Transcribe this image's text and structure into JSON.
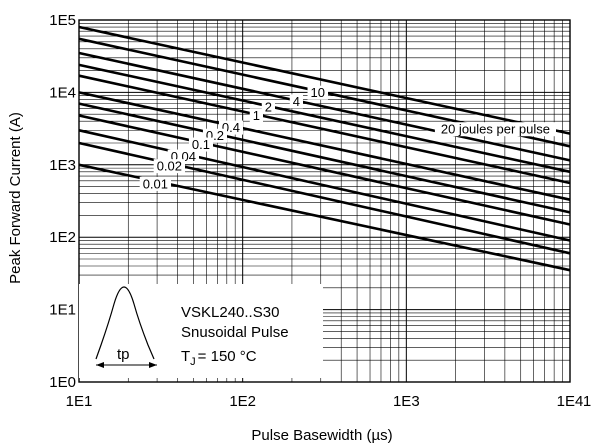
{
  "chart_data": {
    "type": "line",
    "xlabel": "Pulse Basewidth (µs)",
    "ylabel": "Peak Forward Current (A)",
    "x_scale": "log",
    "y_scale": "log",
    "xlim": [
      10,
      10000
    ],
    "ylim": [
      1,
      100000
    ],
    "x_ticks": [
      {
        "value": 10,
        "label": "1E1"
      },
      {
        "value": 100,
        "label": "1E2"
      },
      {
        "value": 1000,
        "label": "1E3"
      },
      {
        "value": 10000,
        "label": "1E4"
      }
    ],
    "x_tick_extra": "1",
    "y_ticks": [
      {
        "value": 1,
        "label": "1E0"
      },
      {
        "value": 10,
        "label": "1E1"
      },
      {
        "value": 100,
        "label": "1E2"
      },
      {
        "value": 1000,
        "label": "1E3"
      },
      {
        "value": 10000,
        "label": "1E4"
      },
      {
        "value": 100000,
        "label": "1E5"
      }
    ],
    "grid": true,
    "series": [
      {
        "label": "20 joules per pulse",
        "x": [
          10,
          10000
        ],
        "y": [
          80000,
          2700
        ]
      },
      {
        "label": "10",
        "x": [
          10,
          10000
        ],
        "y": [
          55000,
          1800
        ]
      },
      {
        "label": "4",
        "x": [
          10,
          10000
        ],
        "y": [
          35000,
          1150
        ]
      },
      {
        "label": "2",
        "x": [
          10,
          10000
        ],
        "y": [
          24000,
          800
        ]
      },
      {
        "label": "1",
        "x": [
          10,
          10000
        ],
        "y": [
          17000,
          560
        ]
      },
      {
        "label": "0.4",
        "x": [
          10,
          10000
        ],
        "y": [
          10000,
          330
        ]
      },
      {
        "label": "0.2",
        "x": [
          10,
          10000
        ],
        "y": [
          7000,
          220
        ]
      },
      {
        "label": "0.1",
        "x": [
          10,
          10000
        ],
        "y": [
          4800,
          150
        ]
      },
      {
        "label": "0.04",
        "x": [
          10,
          10000
        ],
        "y": [
          3000,
          90
        ]
      },
      {
        "label": "0.02",
        "x": [
          10,
          10000
        ],
        "y": [
          2000,
          60
        ]
      },
      {
        "label": "0.01",
        "x": [
          10,
          10000
        ],
        "y": [
          1000,
          35
        ]
      }
    ],
    "annotations": {
      "device": "VSKL240..S30",
      "waveform": "Snusoidal Pulse",
      "temp_prefix": "T",
      "temp_sub": "J",
      "temp_value": "= 150 °C",
      "pulse_label": "tp"
    }
  }
}
